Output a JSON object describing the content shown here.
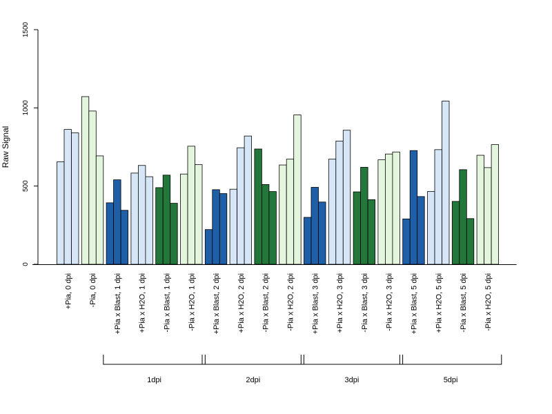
{
  "chart_data": {
    "type": "bar",
    "ylabel": "Raw Signal",
    "ylim": [
      0,
      1500
    ],
    "yticks": [
      0,
      500,
      1000,
      1500
    ],
    "grid": false,
    "legend": "none",
    "categories": [
      {
        "label": "+Pia, 0 dpi",
        "color": "#d6e6f7",
        "values": [
          655,
          862,
          840
        ]
      },
      {
        "label": "-Pia, 0 dpi",
        "color": "#e3f5dc",
        "values": [
          1072,
          980,
          693
        ]
      },
      {
        "label": "+Pia x Blast, 1 dpi",
        "color": "#1f5fa8",
        "values": [
          393,
          540,
          345
        ]
      },
      {
        "label": "+Pia x H2O, 1 dpi",
        "color": "#d6e6f7",
        "values": [
          583,
          632,
          560
        ]
      },
      {
        "label": "-Pia x Blast, 1 dpi",
        "color": "#23773a",
        "values": [
          490,
          570,
          390
        ]
      },
      {
        "label": "-Pia x H2O, 1 dpi",
        "color": "#e3f5dc",
        "values": [
          577,
          755,
          637
        ]
      },
      {
        "label": "+Pia x Blast, 2 dpi",
        "color": "#1f5fa8",
        "values": [
          222,
          477,
          452
        ]
      },
      {
        "label": "+Pia x H2O, 2 dpi",
        "color": "#d6e6f7",
        "values": [
          480,
          745,
          820
        ]
      },
      {
        "label": "-Pia x Blast, 2 dpi",
        "color": "#23773a",
        "values": [
          737,
          510,
          465
        ]
      },
      {
        "label": "-Pia x H2O, 2 dpi",
        "color": "#e3f5dc",
        "values": [
          635,
          672,
          955
        ]
      },
      {
        "label": "+Pia x Blast, 3 dpi",
        "color": "#1f5fa8",
        "values": [
          300,
          492,
          398
        ]
      },
      {
        "label": "+Pia x H2O, 3 dpi",
        "color": "#d6e6f7",
        "values": [
          672,
          788,
          857
        ]
      },
      {
        "label": "-Pia x Blast, 3 dpi",
        "color": "#23773a",
        "values": [
          463,
          620,
          413
        ]
      },
      {
        "label": "-Pia x H2O, 3 dpi",
        "color": "#e3f5dc",
        "values": [
          668,
          705,
          718
        ]
      },
      {
        "label": "+Pia x Blast, 5 dpi",
        "color": "#1f5fa8",
        "values": [
          290,
          727,
          433
        ]
      },
      {
        "label": "+Pia x H2O, 5 dpi",
        "color": "#d6e6f7",
        "values": [
          465,
          733,
          1043
        ]
      },
      {
        "label": "-Pia x Blast, 5 dpi",
        "color": "#23773a",
        "values": [
          402,
          605,
          292
        ]
      },
      {
        "label": "-Pia x H2O, 5 dpi",
        "color": "#e3f5dc",
        "values": [
          697,
          618,
          765
        ]
      }
    ],
    "groups": [
      {
        "label": "1dpi",
        "from": 2,
        "to": 5
      },
      {
        "label": "2dpi",
        "from": 6,
        "to": 9
      },
      {
        "label": "3dpi",
        "from": 10,
        "to": 13
      },
      {
        "label": "5dpi",
        "from": 14,
        "to": 17
      }
    ]
  }
}
